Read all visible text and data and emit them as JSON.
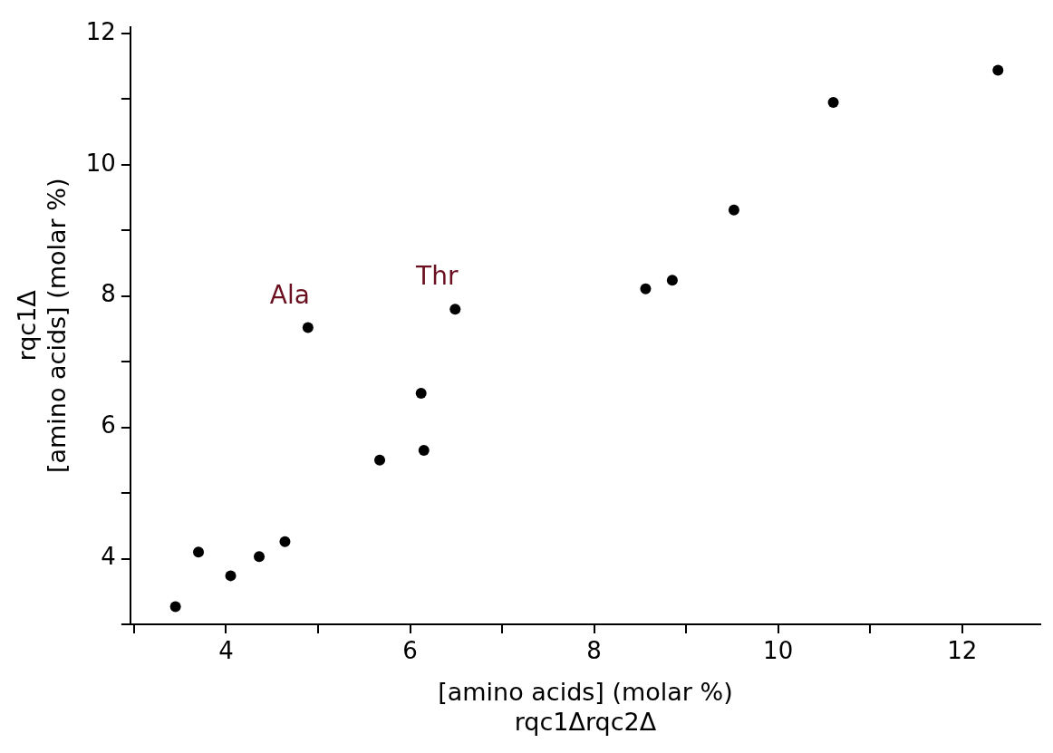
{
  "chart_data": {
    "type": "scatter",
    "xlabel": "[amino acids] (molar %)\nrqc1Δrqc2Δ",
    "ylabel": "rqc1Δ\n[amino acids] (molar %)",
    "x": [
      3.45,
      3.7,
      4.05,
      4.36,
      4.64,
      4.89,
      5.67,
      6.12,
      6.15,
      6.49,
      8.56,
      8.85,
      9.52,
      10.6,
      12.39
    ],
    "series": [
      {
        "color": "#000000",
        "values": [
          3.27,
          4.1,
          3.74,
          4.03,
          4.26,
          7.52,
          5.5,
          6.52,
          5.65,
          7.8,
          8.11,
          8.24,
          9.31,
          10.95,
          11.44
        ]
      }
    ],
    "xlim": [
      2.96,
      12.85
    ],
    "ylim": [
      3,
      12.1
    ],
    "xticks": [
      {
        "value": 3,
        "label": null
      },
      4,
      {
        "value": 5,
        "label": null
      },
      6,
      {
        "value": 7,
        "label": null
      },
      8,
      {
        "value": 9,
        "label": null
      },
      10,
      {
        "value": 11,
        "label": null
      },
      12
    ],
    "yticks": [
      {
        "value": 3,
        "label": null
      },
      4,
      {
        "value": 5,
        "label": null
      },
      6,
      {
        "value": 7,
        "label": null
      },
      8,
      {
        "value": 9,
        "label": null
      },
      10,
      {
        "value": 11,
        "label": null
      },
      12
    ],
    "annotations": [
      {
        "text": "Ala",
        "x": 4.89,
        "y": 7.52
      },
      {
        "text": "Thr",
        "x": 6.49,
        "y": 7.8
      }
    ],
    "marker": "circle",
    "grid": false,
    "legend": false
  }
}
